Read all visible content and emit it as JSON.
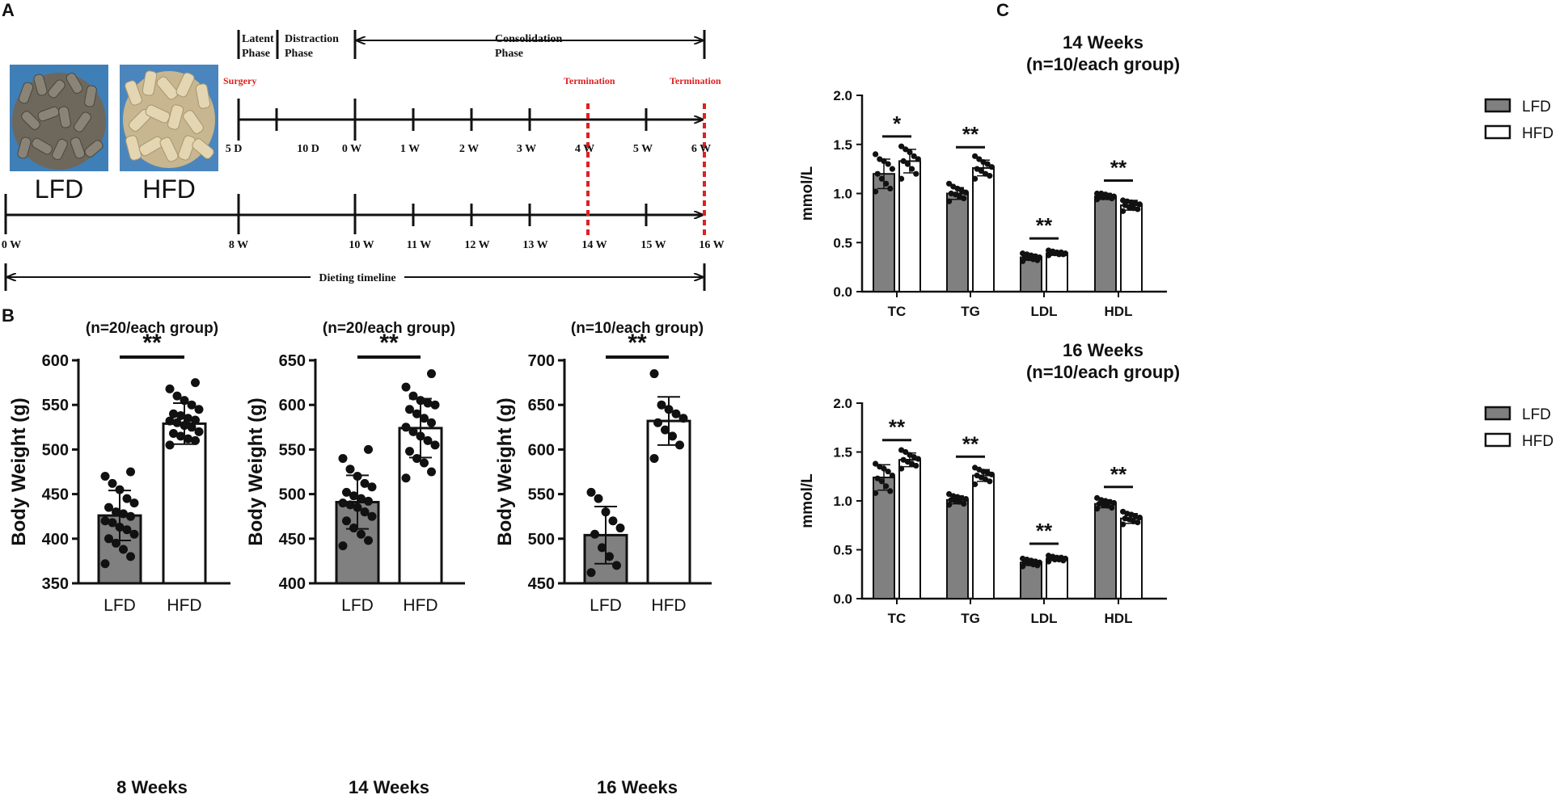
{
  "panel_labels": {
    "a": "A",
    "b": "B",
    "c": "C"
  },
  "colors": {
    "lfd": "#808080",
    "hfd": "#ffffff",
    "stroke": "#111111",
    "termination": "#e02020"
  },
  "panel_a": {
    "photos": [
      {
        "caption": "LFD"
      },
      {
        "caption": "HFD"
      }
    ],
    "phases": {
      "latent": [
        "Latent",
        "Phase"
      ],
      "distraction": [
        "Distraction",
        "Phase"
      ],
      "consolidation": [
        "Consolidation",
        "Phase"
      ]
    },
    "surgery": "Surgery",
    "termination": "Termination",
    "surgery_timeline_ticks": [
      "5 D",
      "10 D",
      "0 W",
      "1 W",
      "2 W",
      "3 W",
      "4 W",
      "5 W",
      "6 W"
    ],
    "diet_timeline_ticks": [
      "0 W",
      "8 W",
      "10 W",
      "11 W",
      "12 W",
      "13 W",
      "14 W",
      "15 W",
      "16 W"
    ],
    "dieting_timeline": "Dieting timeline"
  },
  "chart_data": [
    {
      "type": "bar",
      "panel": "B",
      "title": "(n=20/each group)",
      "xlabel": "8 Weeks",
      "ylabel": "Body Weight (g)",
      "categories": [
        "LFD",
        "HFD"
      ],
      "values": [
        426,
        529
      ],
      "sd": [
        28,
        23
      ],
      "ylim": [
        350,
        600
      ],
      "yticks": [
        "350",
        "400",
        "450",
        "500",
        "550",
        "600"
      ],
      "significance": "**",
      "points": [
        [
          372,
          380,
          388,
          395,
          400,
          405,
          410,
          413,
          418,
          420,
          425,
          428,
          430,
          435,
          440,
          445,
          455,
          462,
          470,
          475
        ],
        [
          505,
          510,
          512,
          515,
          518,
          520,
          525,
          527,
          530,
          532,
          533,
          535,
          538,
          540,
          545,
          550,
          555,
          560,
          568,
          575
        ]
      ]
    },
    {
      "type": "bar",
      "panel": "B",
      "title": "(n=20/each group)",
      "xlabel": "14 Weeks",
      "ylabel": "Body Weight (g)",
      "categories": [
        "LFD",
        "HFD"
      ],
      "values": [
        491,
        574
      ],
      "sd": [
        30,
        33
      ],
      "ylim": [
        400,
        650
      ],
      "yticks": [
        "400",
        "450",
        "500",
        "550",
        "600",
        "650"
      ],
      "significance": "**",
      "points": [
        [
          442,
          448,
          455,
          462,
          470,
          475,
          480,
          485,
          488,
          490,
          492,
          495,
          498,
          502,
          508,
          512,
          520,
          528,
          540,
          550
        ],
        [
          518,
          525,
          535,
          540,
          548,
          555,
          560,
          565,
          570,
          575,
          580,
          585,
          590,
          595,
          600,
          602,
          605,
          610,
          620,
          635
        ]
      ]
    },
    {
      "type": "bar",
      "panel": "B",
      "title": "(n=10/each group)",
      "xlabel": "16 Weeks",
      "ylabel": "Body Weight (g)",
      "categories": [
        "LFD",
        "HFD"
      ],
      "values": [
        504,
        632
      ],
      "sd": [
        32,
        27
      ],
      "ylim": [
        450,
        700
      ],
      "yticks": [
        "450",
        "500",
        "550",
        "600",
        "650",
        "700"
      ],
      "significance": "**",
      "points": [
        [
          462,
          470,
          480,
          490,
          505,
          512,
          520,
          530,
          545,
          552
        ],
        [
          590,
          605,
          615,
          622,
          630,
          635,
          640,
          645,
          650,
          685
        ]
      ]
    },
    {
      "type": "bar",
      "panel": "C",
      "title": [
        "14 Weeks",
        "(n=10/each group)"
      ],
      "ylabel": "mmol/L",
      "categories": [
        "TC",
        "TG",
        "LDL",
        "HDL"
      ],
      "ylim": [
        0,
        2.0
      ],
      "yticks": [
        "0.0",
        "0.5",
        "1.0",
        "1.5",
        "2.0"
      ],
      "legend": [
        "LFD",
        "HFD"
      ],
      "legend_position": "top-right",
      "series": [
        {
          "name": "LFD",
          "values": [
            1.2,
            1.0,
            0.35,
            0.97
          ],
          "sd": [
            0.15,
            0.06,
            0.03,
            0.03
          ],
          "points": [
            [
              1.02,
              1.05,
              1.1,
              1.15,
              1.2,
              1.25,
              1.3,
              1.33,
              1.35,
              1.4
            ],
            [
              0.92,
              0.95,
              0.97,
              0.99,
              1.0,
              1.01,
              1.03,
              1.05,
              1.07,
              1.1
            ],
            [
              0.31,
              0.32,
              0.33,
              0.34,
              0.35,
              0.35,
              0.36,
              0.37,
              0.38,
              0.39
            ],
            [
              0.94,
              0.95,
              0.96,
              0.96,
              0.97,
              0.97,
              0.98,
              0.99,
              1.0,
              1.0
            ]
          ]
        },
        {
          "name": "HFD",
          "values": [
            1.33,
            1.26,
            0.39,
            0.88
          ],
          "sd": [
            0.12,
            0.08,
            0.02,
            0.05
          ],
          "points": [
            [
              1.15,
              1.2,
              1.25,
              1.3,
              1.33,
              1.35,
              1.38,
              1.42,
              1.45,
              1.48
            ],
            [
              1.15,
              1.18,
              1.2,
              1.23,
              1.25,
              1.27,
              1.3,
              1.32,
              1.35,
              1.38
            ],
            [
              0.37,
              0.38,
              0.38,
              0.39,
              0.39,
              0.39,
              0.4,
              0.4,
              0.41,
              0.42
            ],
            [
              0.82,
              0.84,
              0.85,
              0.86,
              0.88,
              0.89,
              0.9,
              0.91,
              0.92,
              0.93
            ]
          ]
        }
      ],
      "significance": [
        "*",
        "**",
        "**",
        "**"
      ]
    },
    {
      "type": "bar",
      "panel": "C",
      "title": [
        "16 Weeks",
        "(n=10/each group)"
      ],
      "ylabel": "mmol/L",
      "categories": [
        "TC",
        "TG",
        "LDL",
        "HDL"
      ],
      "ylim": [
        0,
        2.0
      ],
      "yticks": [
        "0.0",
        "0.5",
        "1.0",
        "1.5",
        "2.0"
      ],
      "legend": [
        "LFD",
        "HFD"
      ],
      "legend_position": "top-right",
      "series": [
        {
          "name": "LFD",
          "values": [
            1.24,
            1.01,
            0.37,
            0.97
          ],
          "sd": [
            0.13,
            0.04,
            0.03,
            0.04
          ],
          "points": [
            [
              1.08,
              1.1,
              1.15,
              1.2,
              1.23,
              1.26,
              1.3,
              1.33,
              1.35,
              1.38
            ],
            [
              0.96,
              0.97,
              0.99,
              1.0,
              1.01,
              1.02,
              1.03,
              1.04,
              1.05,
              1.07
            ],
            [
              0.33,
              0.34,
              0.35,
              0.36,
              0.37,
              0.37,
              0.38,
              0.39,
              0.4,
              0.41
            ],
            [
              0.92,
              0.93,
              0.95,
              0.96,
              0.97,
              0.98,
              0.99,
              1.0,
              1.01,
              1.03
            ]
          ]
        },
        {
          "name": "HFD",
          "values": [
            1.42,
            1.26,
            0.41,
            0.82
          ],
          "sd": [
            0.07,
            0.06,
            0.02,
            0.05
          ],
          "points": [
            [
              1.33,
              1.36,
              1.38,
              1.4,
              1.42,
              1.43,
              1.45,
              1.47,
              1.5,
              1.52
            ],
            [
              1.17,
              1.2,
              1.22,
              1.24,
              1.26,
              1.27,
              1.29,
              1.3,
              1.32,
              1.34
            ],
            [
              0.38,
              0.39,
              0.4,
              0.4,
              0.41,
              0.41,
              0.42,
              0.42,
              0.43,
              0.44
            ],
            [
              0.76,
              0.78,
              0.79,
              0.81,
              0.82,
              0.83,
              0.84,
              0.86,
              0.87,
              0.89
            ]
          ]
        }
      ],
      "significance": [
        "**",
        "**",
        "**",
        "**"
      ]
    }
  ]
}
